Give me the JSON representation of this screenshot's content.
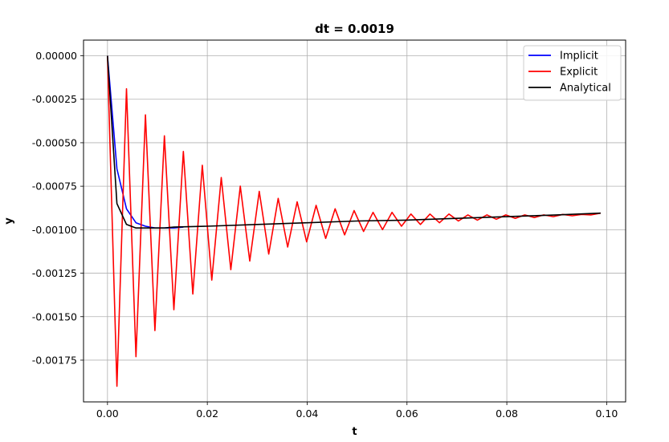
{
  "chart_data": {
    "type": "line",
    "title": "dt = 0.0019",
    "xlabel": "t",
    "ylabel": "y",
    "xlim": [
      -0.0048,
      0.1038
    ],
    "ylim": [
      -0.00199,
      9e-05
    ],
    "xticks": [
      0.0,
      0.02,
      0.04,
      0.06,
      0.08,
      0.1
    ],
    "xtick_labels": [
      "0.00",
      "0.02",
      "0.04",
      "0.06",
      "0.08",
      "0.10"
    ],
    "yticks": [
      0.0,
      -0.00025,
      -0.0005,
      -0.00075,
      -0.001,
      -0.00125,
      -0.0015,
      -0.00175
    ],
    "ytick_labels": [
      "0.00000",
      "-0.00025",
      "-0.00050",
      "-0.00075",
      "-0.00100",
      "-0.00125",
      "-0.00150",
      "-0.00175"
    ],
    "grid": true,
    "legend_position": "top-right",
    "series": [
      {
        "name": "Implicit",
        "color": "#0000ff",
        "x": [
          0.0,
          0.0019,
          0.0038,
          0.0057,
          0.0076,
          0.0095,
          0.0114,
          0.0133,
          0.0152
        ],
        "y": [
          0.0,
          -0.00065,
          -0.00088,
          -0.00096,
          -0.00098,
          -0.00099,
          -0.00099,
          -0.00099,
          -0.000985
        ]
      },
      {
        "name": "Explicit",
        "color": "#ff0000",
        "x": [
          0.0,
          0.0019,
          0.0038,
          0.0057,
          0.0076,
          0.0095,
          0.0114,
          0.0133,
          0.0152,
          0.0171,
          0.019,
          0.0209,
          0.0228,
          0.0247,
          0.0266,
          0.0285,
          0.0304,
          0.0323,
          0.0342,
          0.0361,
          0.038,
          0.0399,
          0.0418,
          0.0437,
          0.0456,
          0.0475,
          0.0494,
          0.0513,
          0.0532,
          0.0551,
          0.057,
          0.0589,
          0.0608,
          0.0627,
          0.0646,
          0.0665,
          0.0684,
          0.0703,
          0.0722,
          0.0741,
          0.076,
          0.0779,
          0.0798,
          0.0817,
          0.0836,
          0.0855,
          0.0874,
          0.0893,
          0.0912,
          0.0931,
          0.095,
          0.0969,
          0.0988
        ],
        "y": [
          0.0,
          -0.0019,
          -0.00019,
          -0.00173,
          -0.00034,
          -0.00158,
          -0.00046,
          -0.00146,
          -0.00055,
          -0.00137,
          -0.00063,
          -0.00129,
          -0.0007,
          -0.00123,
          -0.00075,
          -0.00118,
          -0.00078,
          -0.00114,
          -0.00082,
          -0.0011,
          -0.00084,
          -0.00107,
          -0.00086,
          -0.00105,
          -0.00088,
          -0.00103,
          -0.00089,
          -0.00101,
          -0.0009,
          -0.001,
          -0.0009,
          -0.00098,
          -0.00091,
          -0.00097,
          -0.00091,
          -0.00096,
          -0.00091,
          -0.00095,
          -0.000915,
          -0.000945,
          -0.000915,
          -0.00094,
          -0.000915,
          -0.000935,
          -0.000915,
          -0.00093,
          -0.000915,
          -0.000925,
          -0.000912,
          -0.00092,
          -0.000912,
          -0.000915,
          -0.000905
        ]
      },
      {
        "name": "Analytical",
        "color": "#000000",
        "x": [
          0.0,
          0.0019,
          0.0038,
          0.0057,
          0.0076,
          0.0095,
          0.0114,
          0.0133,
          0.02,
          0.03,
          0.04,
          0.05,
          0.06,
          0.07,
          0.08,
          0.09,
          0.0988
        ],
        "y": [
          0.0,
          -0.00085,
          -0.00097,
          -0.00099,
          -0.00099,
          -0.00099,
          -0.00099,
          -0.000985,
          -0.00098,
          -0.00097,
          -0.00096,
          -0.00095,
          -0.000945,
          -0.000935,
          -0.000925,
          -0.000915,
          -0.000905
        ]
      }
    ]
  }
}
